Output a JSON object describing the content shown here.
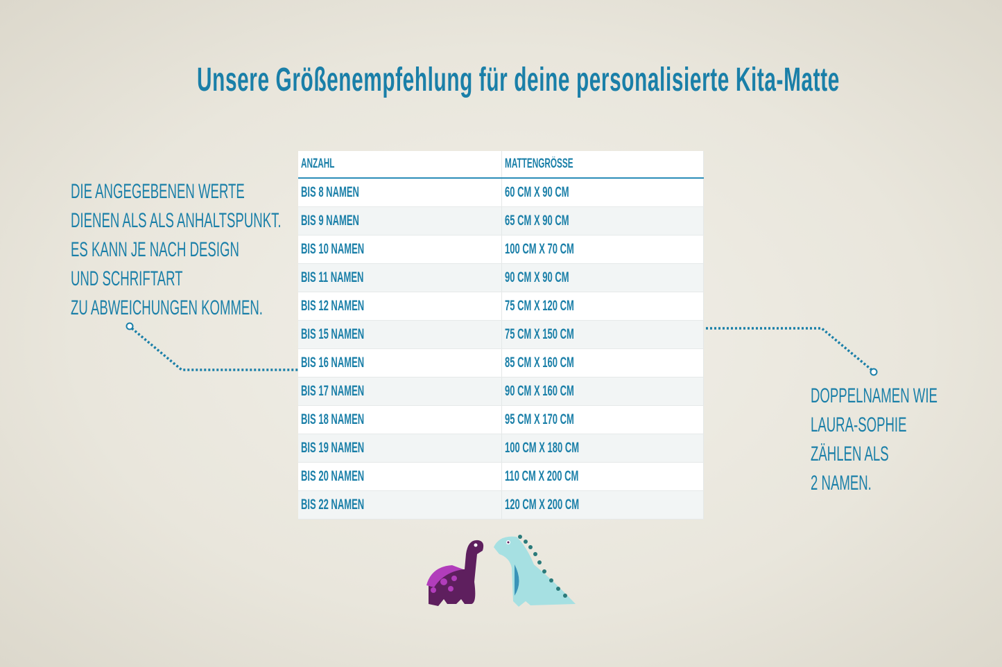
{
  "title": "Unsere Größenempfehlung für deine personalisierte Kita-Matte",
  "left_note": [
    "Die angegebenen Werte",
    "dienen als als Anhaltspunkt.",
    "Es kann je nach Design",
    "und Schriftart",
    "zu Abweichungen kommen."
  ],
  "right_note": [
    "Doppelnamen wie",
    "Laura-Sophie",
    "zählen als",
    "2 Namen."
  ],
  "table": {
    "headers": [
      "Anzahl",
      "Mattengröße"
    ],
    "rows": [
      [
        "bis 8 Namen",
        "60 cm x 90 cm"
      ],
      [
        "bis 9 Namen",
        "65 cm x 90 cm"
      ],
      [
        "bis 10 Namen",
        "100 cm x 70 cm"
      ],
      [
        "bis 11 Namen",
        "90 cm x 90 cm"
      ],
      [
        "bis 12 Namen",
        "75 cm x 120 cm"
      ],
      [
        "bis 15 Namen",
        "75 cm x 150 cm"
      ],
      [
        "bis 16 Namen",
        "85 cm x 160 cm"
      ],
      [
        "bis 17 Namen",
        "90 cm x 160 cm"
      ],
      [
        "bis 18 Namen",
        "95 cm x 170 cm"
      ],
      [
        "bis 19 Namen",
        "100 cm x 180 cm"
      ],
      [
        "bis 20 Namen",
        "110 cm x 200 cm"
      ],
      [
        "bis 22 Namen",
        "120 cm x 200 cm"
      ]
    ]
  },
  "colors": {
    "accent": "#1a7fa8",
    "purple_dino": "#5e1f5e",
    "blue_dino": "#a6e0e2"
  }
}
